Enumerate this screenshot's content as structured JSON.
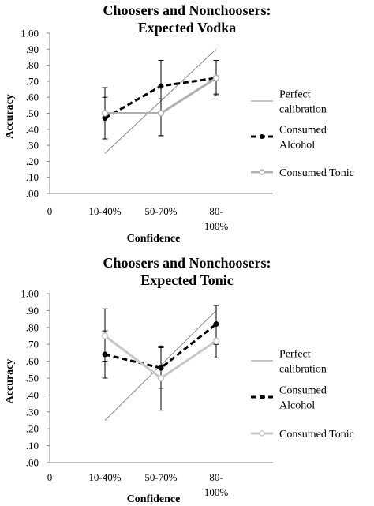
{
  "chart_data": [
    {
      "type": "line",
      "title_lines": [
        "Choosers and Nonchoosers:",
        "Expected Vodka"
      ],
      "xlabel": "Confidence",
      "ylabel": "Accuracy",
      "x_origin_label": "0",
      "categories": [
        {
          "lines": [
            "10-40%"
          ]
        },
        {
          "lines": [
            "50-70%"
          ]
        },
        {
          "lines": [
            "80-",
            "100%"
          ]
        }
      ],
      "ylim": [
        0,
        1
      ],
      "y_ticks": [
        ".00",
        ".10",
        ".20",
        ".30",
        ".40",
        ".50",
        ".60",
        ".70",
        ".80",
        ".90",
        "1.00"
      ],
      "grid": false,
      "legend_position": "right",
      "series": [
        {
          "name_lines": [
            "Perfect",
            "calibration"
          ],
          "style": "perfect",
          "color": "#888888",
          "x_values": [
            0.25,
            0.9
          ],
          "y_values": [
            0.25,
            0.9
          ]
        },
        {
          "name_lines": [
            "Consumed",
            "Alcohol"
          ],
          "style": "dashed",
          "color": "#000000",
          "values": [
            0.47,
            0.67,
            0.72
          ],
          "error_low": [
            0.34,
            0.36,
            0.61
          ],
          "error_high": [
            0.66,
            0.83,
            0.83
          ]
        },
        {
          "name_lines": [
            "Consumed Tonic"
          ],
          "style": "solid",
          "color": "#b0b0b0",
          "values": [
            0.5,
            0.5,
            0.72
          ],
          "error_low": [
            0.34,
            0.36,
            0.62
          ],
          "error_high": [
            0.6,
            0.59,
            0.82
          ]
        }
      ]
    },
    {
      "type": "line",
      "title_lines": [
        "Choosers and Nonchoosers:",
        "Expected Tonic"
      ],
      "xlabel": "Confidence",
      "ylabel": "Accuracy",
      "x_origin_label": "0",
      "categories": [
        {
          "lines": [
            "10-40%"
          ]
        },
        {
          "lines": [
            "50-70%"
          ]
        },
        {
          "lines": [
            "80-",
            "100%"
          ]
        }
      ],
      "ylim": [
        0,
        1
      ],
      "y_ticks": [
        ".00",
        ".10",
        ".20",
        ".30",
        ".40",
        ".50",
        ".60",
        ".70",
        ".80",
        ".90",
        "1.00"
      ],
      "grid": false,
      "legend_position": "right",
      "series": [
        {
          "name_lines": [
            "Perfect",
            "calibration"
          ],
          "style": "perfect",
          "color": "#888888",
          "x_values": [
            0.25,
            0.9
          ],
          "y_values": [
            0.25,
            0.9
          ]
        },
        {
          "name_lines": [
            "Consumed",
            "Alcohol"
          ],
          "style": "dashed",
          "color": "#000000",
          "values": [
            0.64,
            0.56,
            0.82
          ],
          "error_low": [
            0.5,
            0.44,
            0.7
          ],
          "error_high": [
            0.78,
            0.69,
            0.93
          ]
        },
        {
          "name_lines": [
            "Consumed Tonic"
          ],
          "style": "solid",
          "color": "#c8c8c8",
          "values": [
            0.75,
            0.5,
            0.72
          ],
          "error_low": [
            0.6,
            0.31,
            0.62
          ],
          "error_high": [
            0.91,
            0.68,
            0.82
          ]
        }
      ]
    }
  ]
}
